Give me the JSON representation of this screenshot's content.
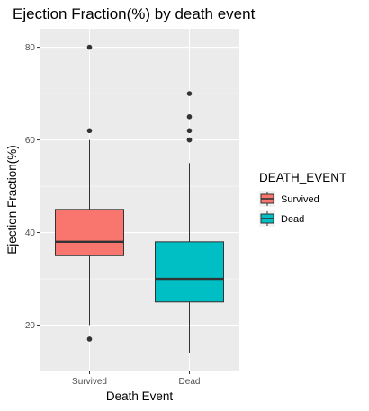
{
  "chart_data": {
    "type": "boxplot",
    "title": "Ejection Fraction(%) by death event",
    "xlabel": "Death Event",
    "ylabel": "Ejection Fraction(%)",
    "ylim": [
      10,
      84
    ],
    "yticks": [
      20,
      40,
      60,
      80
    ],
    "categories": [
      "Survived",
      "Dead"
    ],
    "series": [
      {
        "category": "Survived",
        "color": "#F8766D",
        "whisker_low": 20,
        "q1": 35,
        "median": 38,
        "q3": 45,
        "whisker_high": 60,
        "outliers": [
          17,
          62,
          80
        ]
      },
      {
        "category": "Dead",
        "color": "#00BFC4",
        "whisker_low": 14,
        "q1": 25,
        "median": 30,
        "q3": 38,
        "whisker_high": 55,
        "outliers": [
          60,
          60,
          62,
          65,
          70
        ]
      }
    ],
    "legend": {
      "title": "DEATH_EVENT",
      "position": "right",
      "entries": [
        {
          "label": "Survived",
          "color": "#F8766D"
        },
        {
          "label": "Dead",
          "color": "#00BFC4"
        }
      ]
    },
    "grid": true,
    "panel_background": "#EBEBEB"
  }
}
